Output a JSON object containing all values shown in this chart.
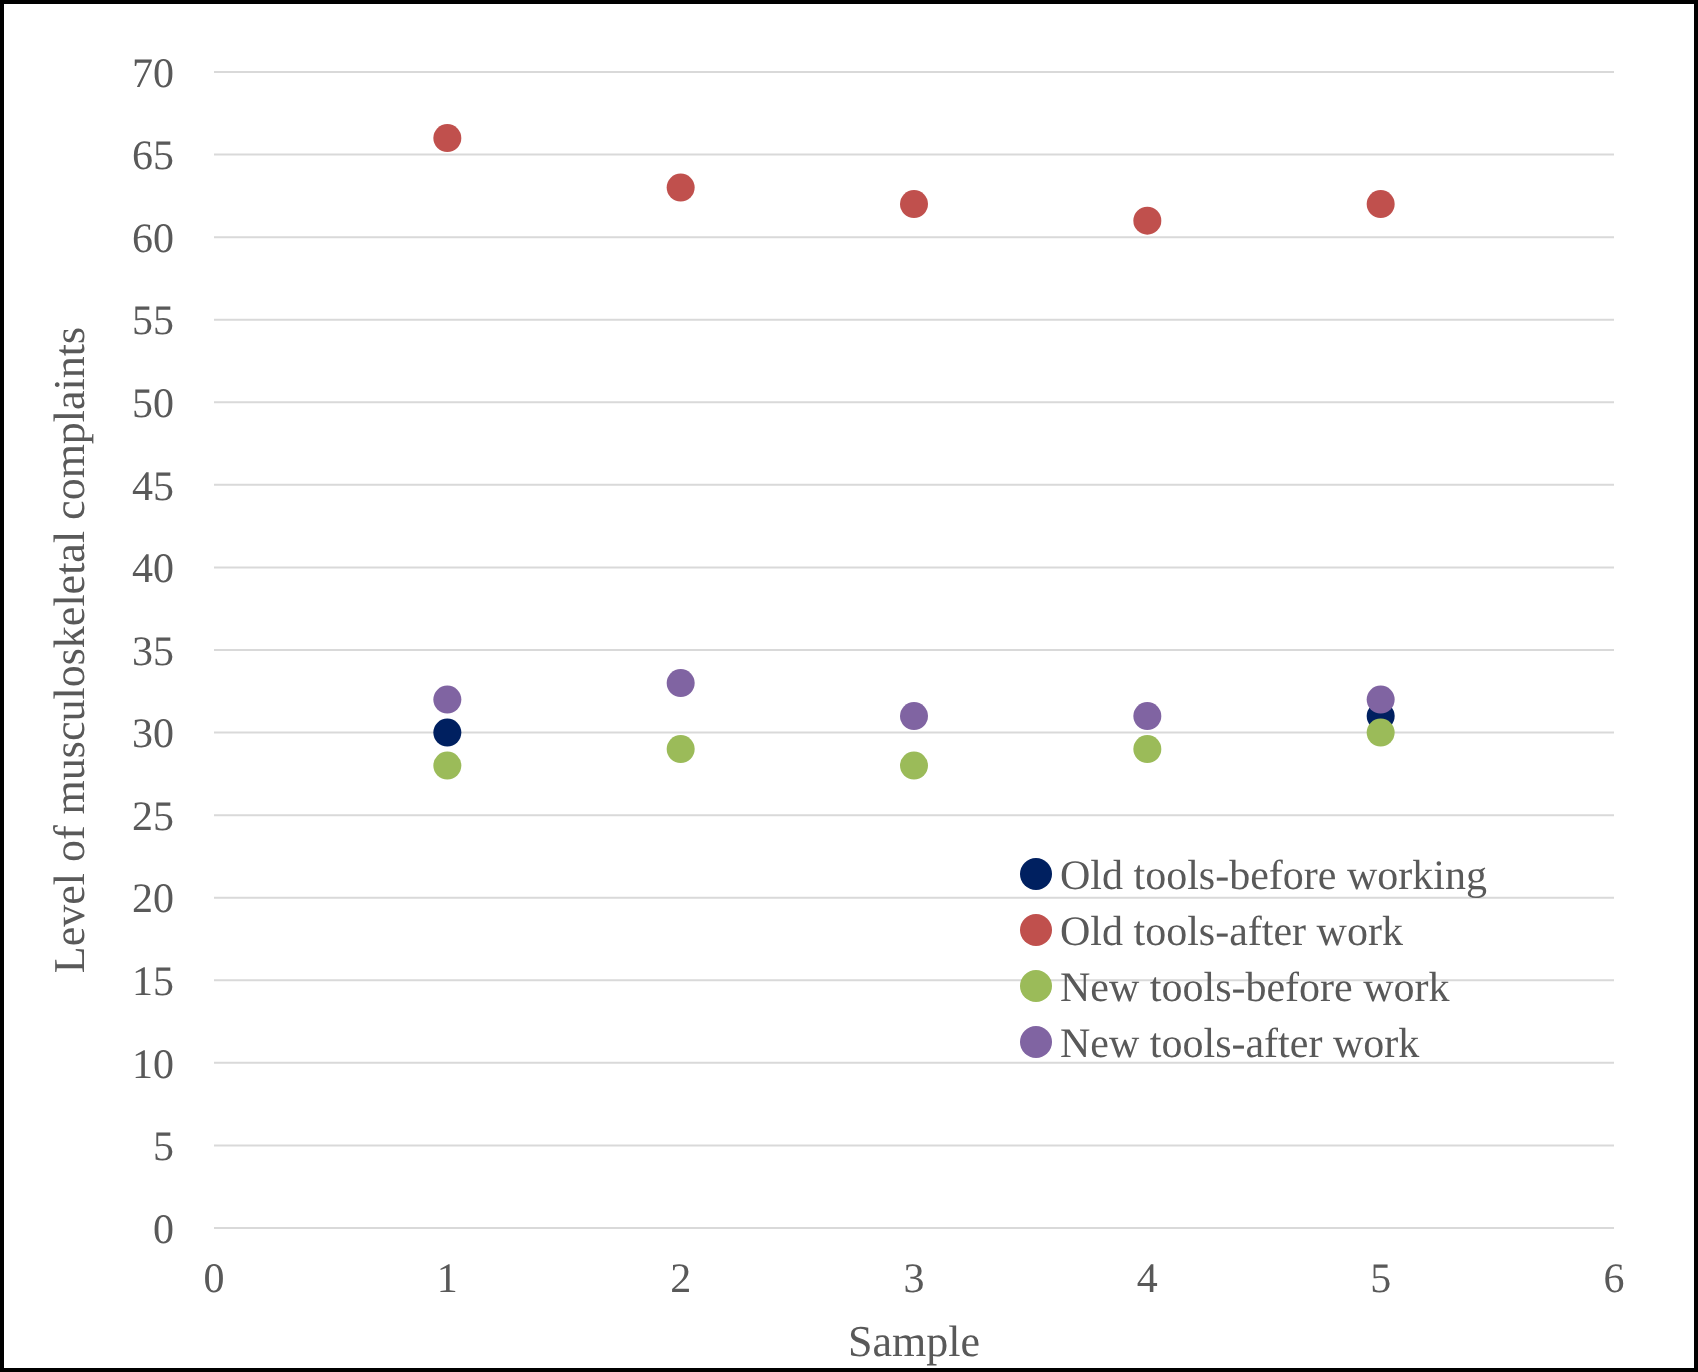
{
  "chart_data": {
    "type": "scatter",
    "xlabel": "Sample",
    "ylabel": "Level of musculoskeletal complaints",
    "x": [
      1,
      2,
      3,
      4,
      5
    ],
    "xlim": [
      0,
      6
    ],
    "xticks": [
      0,
      1,
      2,
      3,
      4,
      5,
      6
    ],
    "ylim": [
      0,
      70
    ],
    "yticks": [
      0,
      5,
      10,
      15,
      20,
      25,
      30,
      35,
      40,
      45,
      50,
      55,
      60,
      65,
      70
    ],
    "grid": "y",
    "legend": "bottom right",
    "marker": "circle",
    "series": [
      {
        "name": "Old tools-before working",
        "color": "#002060",
        "values": [
          30,
          null,
          null,
          null,
          31
        ]
      },
      {
        "name": "Old tools-after work",
        "color": "#c0504d",
        "values": [
          66,
          63,
          62,
          61,
          62
        ]
      },
      {
        "name": "New tools-before work",
        "color": "#9bbb59",
        "values": [
          28,
          29,
          28,
          29,
          30
        ]
      },
      {
        "name": "New tools-after work",
        "color": "#8064a2",
        "values": [
          32,
          33,
          31,
          31,
          32
        ]
      }
    ]
  }
}
